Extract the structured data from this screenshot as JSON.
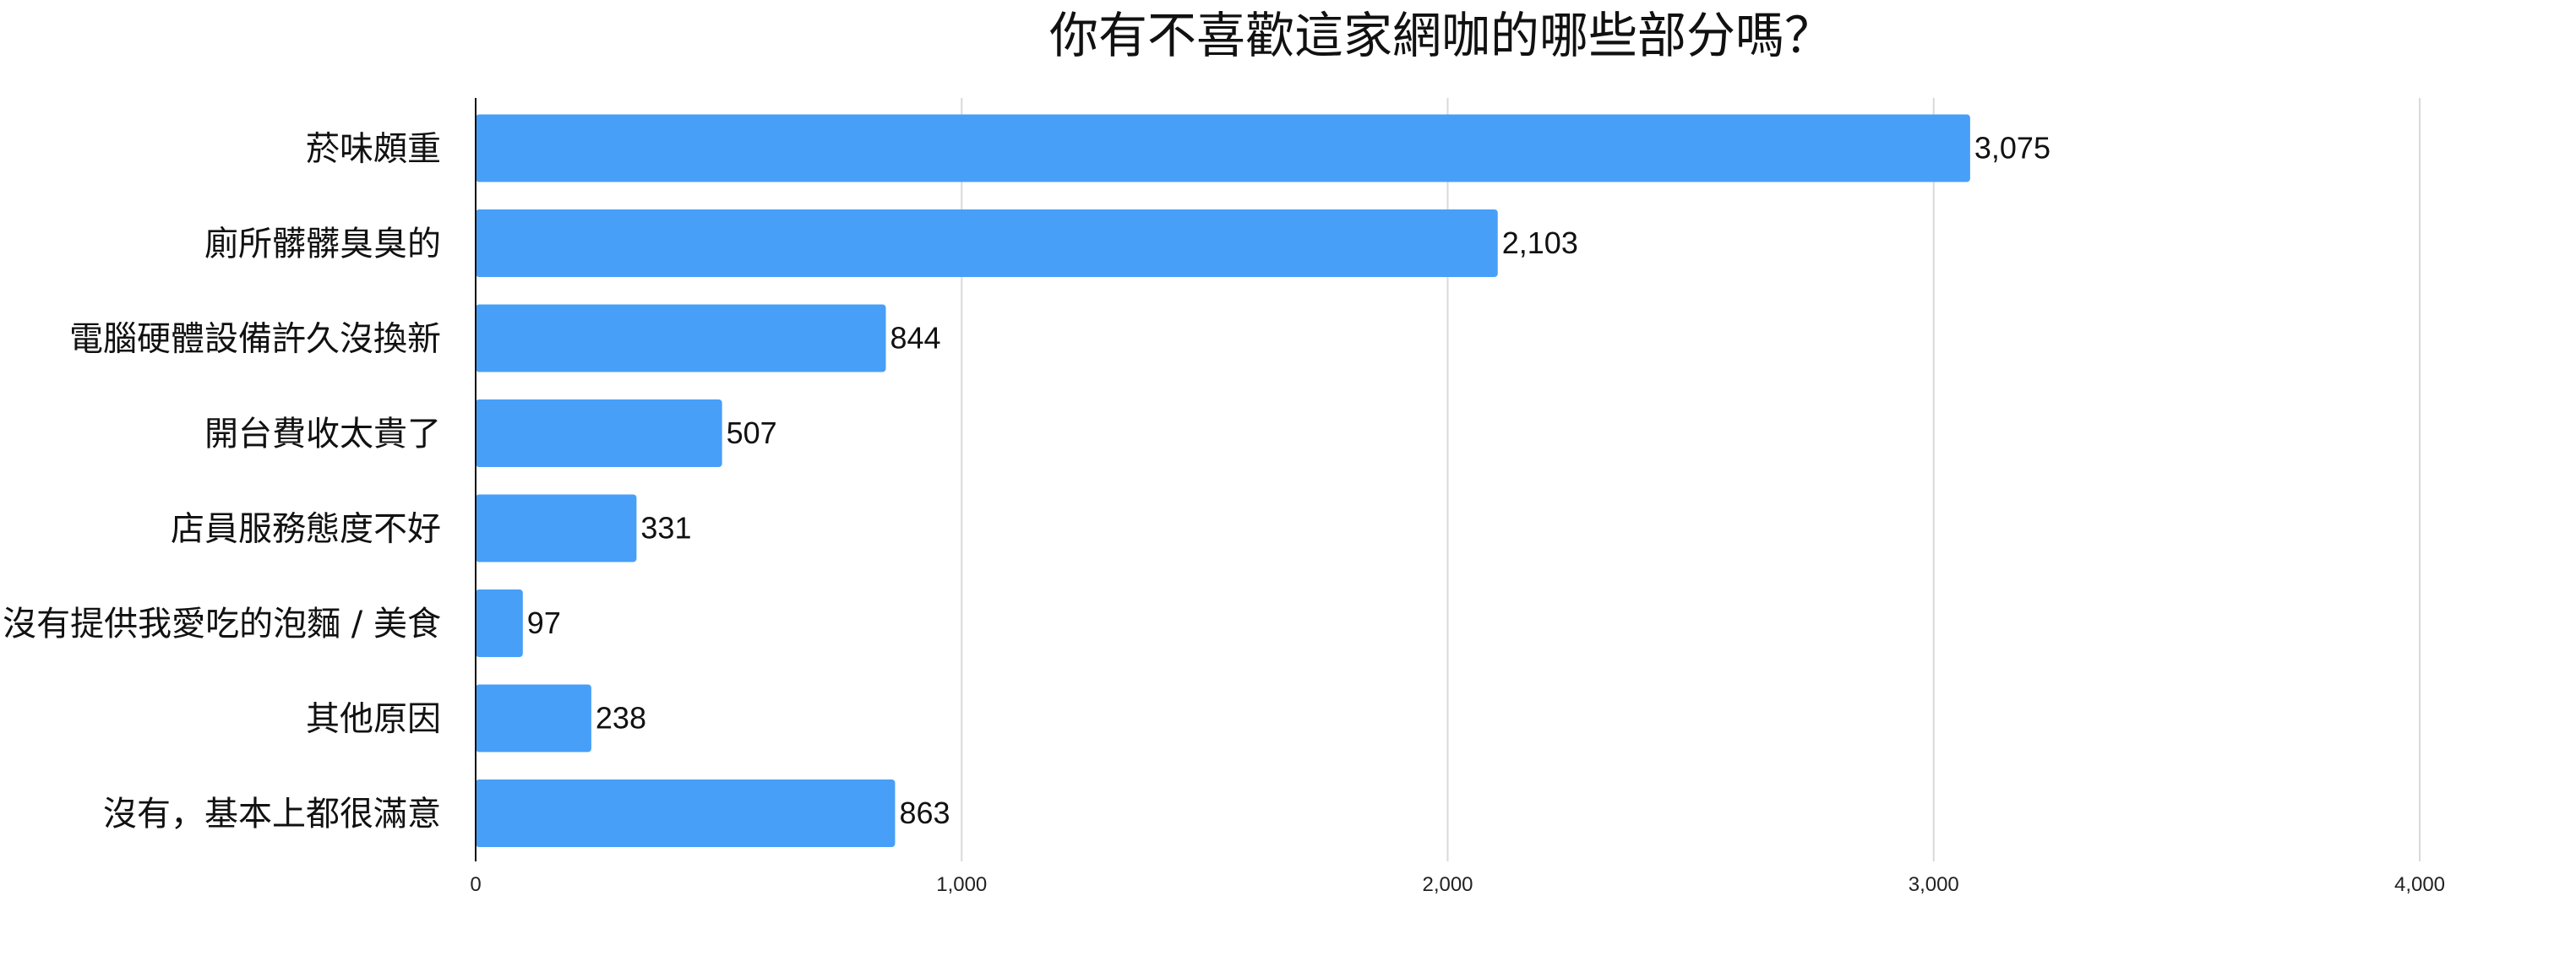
{
  "chart_data": {
    "type": "bar",
    "orientation": "horizontal",
    "title": "你有不喜歡這家網咖的哪些部分嗎？",
    "xlabel": "",
    "ylabel": "",
    "categories": [
      "菸味頗重",
      "廁所髒髒臭臭的",
      "電腦硬體設備許久沒換新",
      "開台費收太貴了",
      "店員服務態度不好",
      "沒有提供我愛吃的泡麵 / 美食",
      "其他原因",
      "沒有，基本上都很滿意"
    ],
    "values": [
      3075,
      2103,
      844,
      507,
      331,
      97,
      238,
      863
    ],
    "value_labels": [
      "3,075",
      "2,103",
      "844",
      "507",
      "331",
      "97",
      "238",
      "863"
    ],
    "xlim": [
      0,
      4000
    ],
    "ticks": [
      0,
      1000,
      2000,
      3000,
      4000
    ],
    "tick_labels": [
      "0",
      "1,000",
      "2,000",
      "3,000",
      "4,000"
    ],
    "grid": true,
    "legend": "none",
    "bar_color": "#479ff8"
  }
}
